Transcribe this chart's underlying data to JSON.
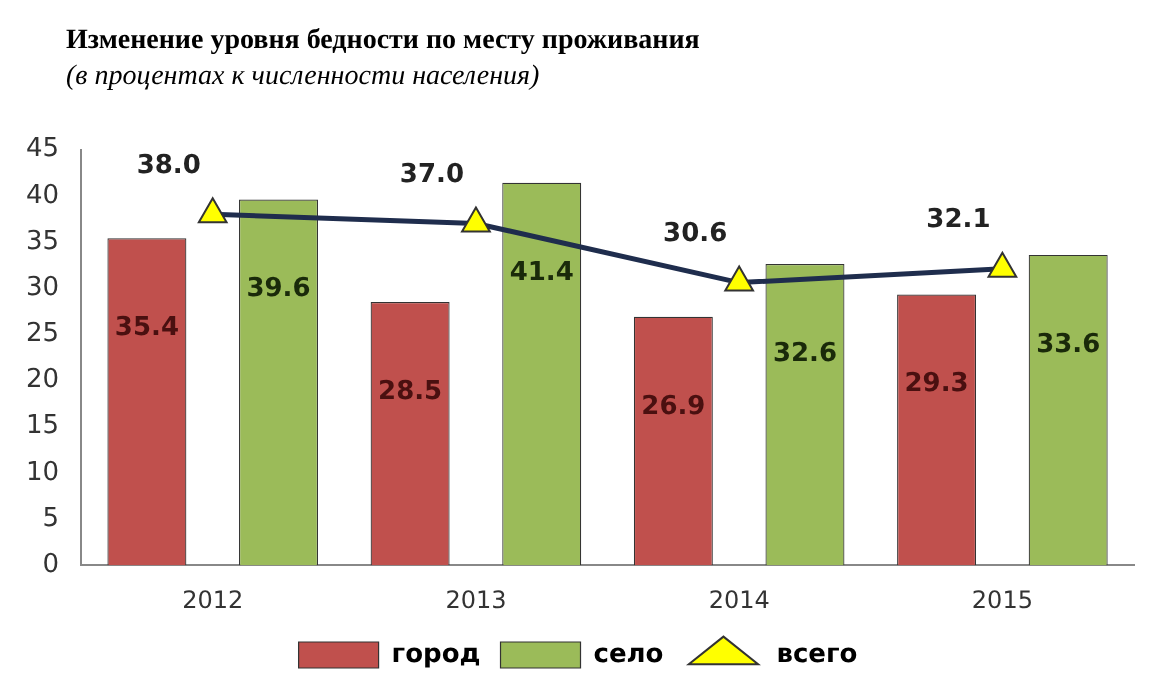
{
  "chart_data": {
    "type": "bar",
    "title": "Изменение уровня бедности по месту проживания",
    "subtitle": "(в процентах к численности населения)",
    "categories": [
      "2012",
      "2013",
      "2014",
      "2015"
    ],
    "series": [
      {
        "name": "город",
        "color": "#c0504d",
        "values": [
          35.4,
          28.5,
          26.9,
          29.3
        ],
        "value_labels": [
          "35.4",
          "28.5",
          "26.9",
          "29.3"
        ]
      },
      {
        "name": "село",
        "color": "#9bbb59",
        "values": [
          39.6,
          41.4,
          32.6,
          33.6
        ],
        "value_labels": [
          "39.6",
          "41.4",
          "32.6",
          "33.6"
        ]
      },
      {
        "name": "всего",
        "type": "line",
        "color": "#1f2d4d",
        "values": [
          38.0,
          37.0,
          30.6,
          32.1
        ],
        "value_labels": [
          "38.0",
          "37.0",
          "30.6",
          "32.1"
        ]
      }
    ],
    "ylim": [
      0,
      45
    ],
    "yticks": [
      0,
      5,
      10,
      15,
      20,
      25,
      30,
      35,
      40,
      45
    ],
    "grid": false,
    "legend": "bottom",
    "marker": "triangle"
  }
}
